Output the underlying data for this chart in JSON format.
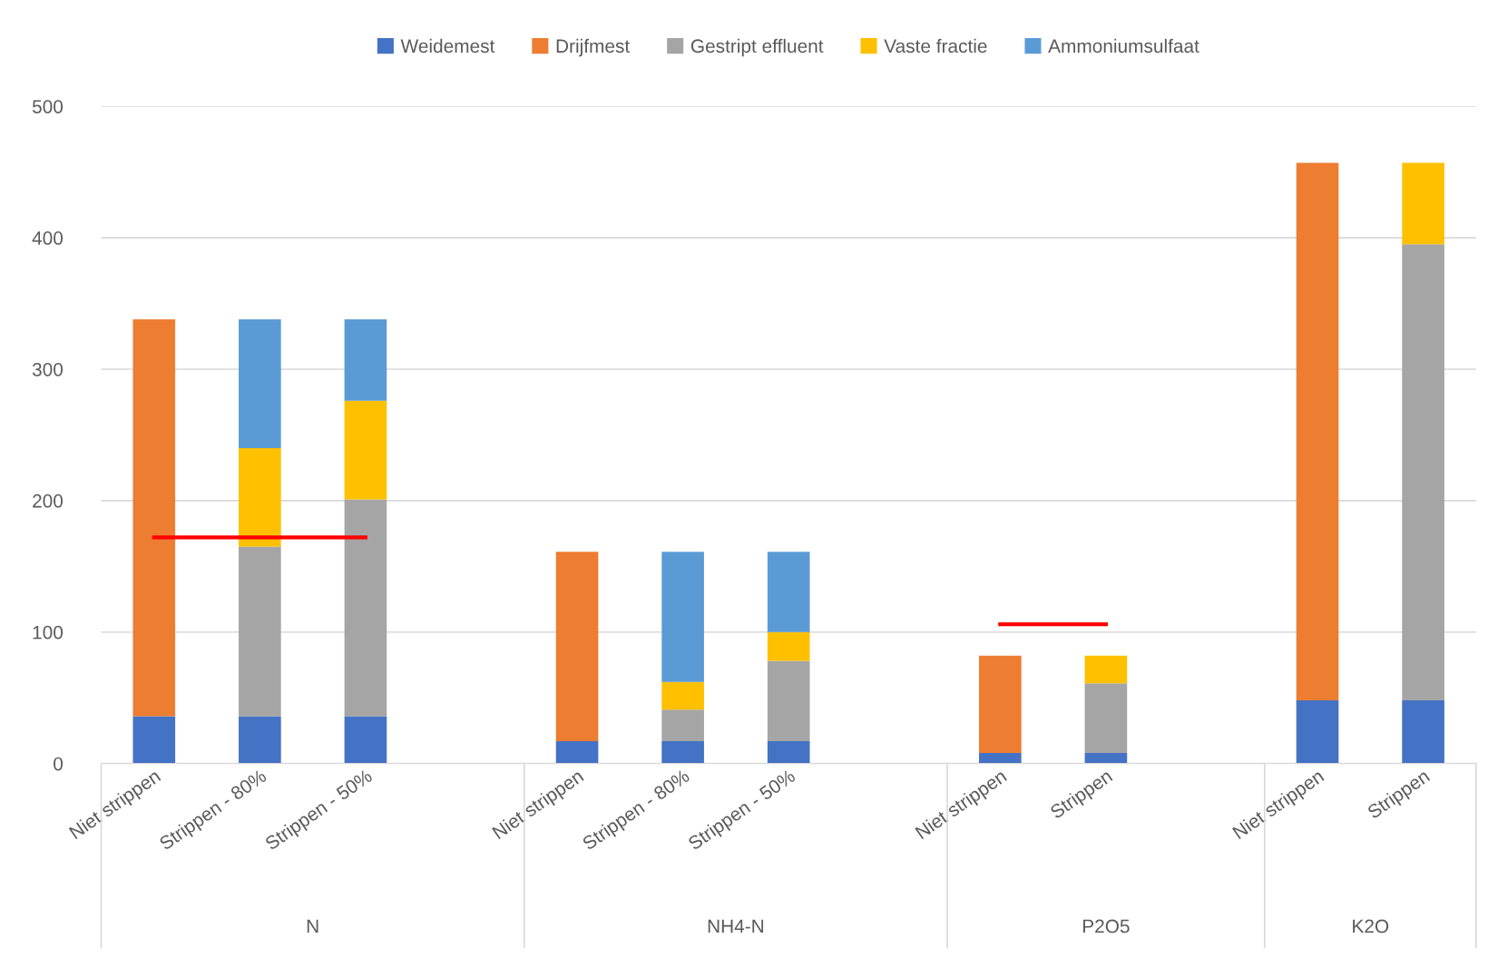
{
  "chart_data": {
    "type": "bar",
    "stacked": true,
    "categories": [
      "Niet strippen",
      "Strippen - 80%",
      "Strippen - 50%",
      null,
      "Niet strippen",
      "Strippen - 80%",
      "Strippen - 50%",
      null,
      "Niet strippen",
      "Strippen",
      null,
      "Niet strippen",
      "Strippen"
    ],
    "series": [
      {
        "name": "Weidemest",
        "color": "#4472c4",
        "values": [
          36,
          36,
          36,
          null,
          17,
          17,
          17,
          null,
          8,
          8,
          null,
          48,
          48
        ]
      },
      {
        "name": "Drijfmest",
        "color": "#ed7d31",
        "values": [
          302,
          null,
          null,
          null,
          144,
          null,
          null,
          null,
          74,
          null,
          null,
          409,
          null
        ]
      },
      {
        "name": "Gestript effluent",
        "color": "#a5a5a5",
        "values": [
          null,
          129,
          165,
          null,
          null,
          24,
          61,
          null,
          null,
          53,
          null,
          null,
          347
        ]
      },
      {
        "name": "Vaste fractie",
        "color": "#ffc000",
        "values": [
          null,
          75,
          75,
          null,
          null,
          21,
          22,
          null,
          null,
          21,
          null,
          null,
          62
        ]
      },
      {
        "name": "Ammoniumsulfaat",
        "color": "#5b9bd5",
        "values": [
          null,
          98,
          62,
          null,
          null,
          99,
          61,
          null,
          null,
          null,
          null,
          null,
          null
        ]
      },
      {
        "type": "line",
        "color": "#ff0000",
        "values": [
          172,
          172,
          172,
          null,
          null,
          null,
          null,
          null,
          null,
          null,
          null,
          null,
          null
        ]
      },
      {
        "type": "line",
        "color": "#ff0000",
        "values": [
          null,
          null,
          null,
          null,
          null,
          null,
          null,
          null,
          106,
          106,
          null,
          null,
          null
        ]
      }
    ],
    "annotations": [
      "N",
      "NH4-N",
      "P2O5",
      "K2O"
    ],
    "ylim": [
      0,
      500
    ],
    "yticks": [
      0,
      100,
      200,
      300,
      400,
      500
    ],
    "grid": "y",
    "legend": "top"
  }
}
